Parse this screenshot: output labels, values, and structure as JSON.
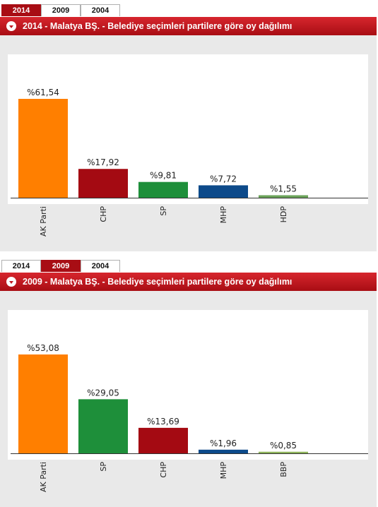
{
  "panels": [
    {
      "tabs": [
        {
          "label": "2014",
          "active": true
        },
        {
          "label": "2009",
          "active": false
        },
        {
          "label": "2004",
          "active": false
        }
      ],
      "title": "2014 - Malatya BŞ. - Belediye seçimleri partilere göre oy dağılımı",
      "chart_data": {
        "type": "bar",
        "categories": [
          "AK Parti",
          "CHP",
          "SP",
          "MHP",
          "HDP"
        ],
        "values": [
          61.54,
          17.92,
          9.81,
          7.72,
          1.55
        ],
        "value_labels": [
          "%61,54",
          "%17,92",
          "%9,81",
          "%7,72",
          "%1,55"
        ],
        "colors": [
          "#ff7f00",
          "#a40a12",
          "#1e8f3a",
          "#0d4a8a",
          "#6ba35a"
        ],
        "ylim": [
          0,
          61.54
        ],
        "grid": false,
        "legend": "none"
      }
    },
    {
      "tabs": [
        {
          "label": "2014",
          "active": false
        },
        {
          "label": "2009",
          "active": true
        },
        {
          "label": "2004",
          "active": false
        }
      ],
      "title": "2009 - Malatya BŞ. - Belediye seçimleri partilere göre oy dağılımı",
      "chart_data": {
        "type": "bar",
        "categories": [
          "AK Parti",
          "SP",
          "CHP",
          "MHP",
          "BBP"
        ],
        "values": [
          53.08,
          29.05,
          13.69,
          1.96,
          0.85
        ],
        "value_labels": [
          "%53,08",
          "%29,05",
          "%13,69",
          "%1,96",
          "%0,85"
        ],
        "colors": [
          "#ff7f00",
          "#1e8f3a",
          "#a40a12",
          "#0d4a8a",
          "#8db35a"
        ],
        "ylim": [
          0,
          53.08
        ],
        "grid": false,
        "legend": "none"
      }
    }
  ]
}
